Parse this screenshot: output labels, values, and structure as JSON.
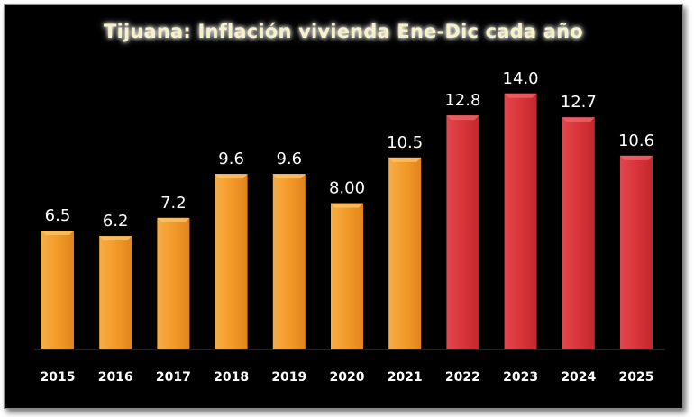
{
  "chart_data": {
    "type": "bar",
    "title": "Tijuana: Inflación vivienda Ene-Dic cada año",
    "xlabel": "",
    "ylabel": "",
    "ylim": [
      0,
      16
    ],
    "grid": false,
    "categories": [
      "2015",
      "2016",
      "2017",
      "2018",
      "2019",
      "2020",
      "2021",
      "2022",
      "2023",
      "2024",
      "2025"
    ],
    "values": [
      6.5,
      6.2,
      7.2,
      9.6,
      9.6,
      8.0,
      10.5,
      12.8,
      14.0,
      12.7,
      10.6
    ],
    "data_labels": [
      "6.5",
      "6.2",
      "7.2",
      "9.6",
      "9.6",
      "8.00",
      "10.5",
      "12.8",
      "14.0",
      "12.7",
      "10.6"
    ],
    "bar_colors": [
      "#f39a2a",
      "#f39a2a",
      "#f39a2a",
      "#f39a2a",
      "#f39a2a",
      "#f39a2a",
      "#f39a2a",
      "#d8353a",
      "#d8353a",
      "#d8353a",
      "#d8353a"
    ]
  },
  "colors": {
    "background": "#000000",
    "orange": "#f39a2a",
    "red": "#d8353a",
    "title": "#f6f1c9"
  }
}
